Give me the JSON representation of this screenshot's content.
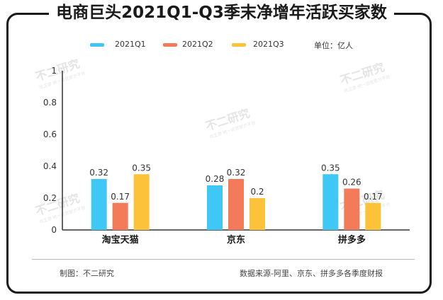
{
  "chart_data": {
    "type": "bar",
    "title": "电商巨头2021Q1-Q3季末净增年活跃买家数",
    "unit_label": "单位：亿人",
    "categories": [
      "淘宝天猫",
      "京东",
      "拼多多"
    ],
    "series": [
      {
        "name": "2021Q1",
        "color": "#3FC8F5",
        "values": [
          0.32,
          0.28,
          0.35
        ]
      },
      {
        "name": "2021Q2",
        "color": "#F47B5A",
        "values": [
          0.17,
          0.32,
          0.26
        ]
      },
      {
        "name": "2021Q3",
        "color": "#FCC33A",
        "values": [
          0.35,
          0.2,
          0.17
        ]
      }
    ],
    "ylim": [
      0,
      1
    ],
    "yticks": [
      0,
      0.2,
      0.4,
      0.6,
      0.8,
      1
    ],
    "xlabel": "",
    "ylabel": ""
  },
  "footer": {
    "left": "制图：不二研究",
    "right": "数据来源-阿里、京东、拼多多各季度财报"
  },
  "watermark": {
    "main": "不二研究",
    "sub": "找正游 统一运营官方平台"
  }
}
